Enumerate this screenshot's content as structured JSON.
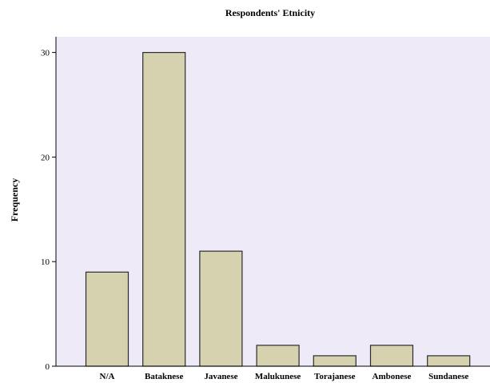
{
  "chart_data": {
    "type": "bar",
    "title": "Respondents' Etnicity",
    "xlabel": "",
    "ylabel": "Frequency",
    "categories": [
      "N/A",
      "Bataknese",
      "Javanese",
      "Malukunese",
      "Torajanese",
      "Ambonese",
      "Sundanese"
    ],
    "values": [
      9,
      30,
      11,
      2,
      1,
      2,
      1
    ],
    "ylim": [
      0,
      31.5
    ],
    "yticks": [
      "0",
      "10",
      "20",
      "30"
    ],
    "grid": false,
    "legend": "none",
    "colors": {
      "plot_background": "#efeaf8",
      "bar_fill": "#d6d2b0",
      "bar_stroke": "#2b2b2b",
      "axis": "#000000"
    }
  }
}
